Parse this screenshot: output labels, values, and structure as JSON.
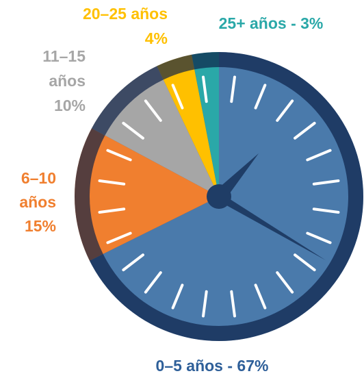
{
  "chart_data": {
    "type": "pie",
    "labels": [
      [
        "0–5 años - 67%"
      ],
      [
        "6–10",
        "años",
        "15%"
      ],
      [
        "11–15",
        "años",
        "10%"
      ],
      [
        "20–25 años",
        "4%"
      ],
      [
        "25+ años - 3%"
      ]
    ],
    "values": [
      67,
      15,
      10,
      4,
      3
    ],
    "colors": [
      "#4a7aab",
      "#f07f2f",
      "#a6a6a6",
      "#ffc000",
      "#2aa8a8"
    ]
  }
}
